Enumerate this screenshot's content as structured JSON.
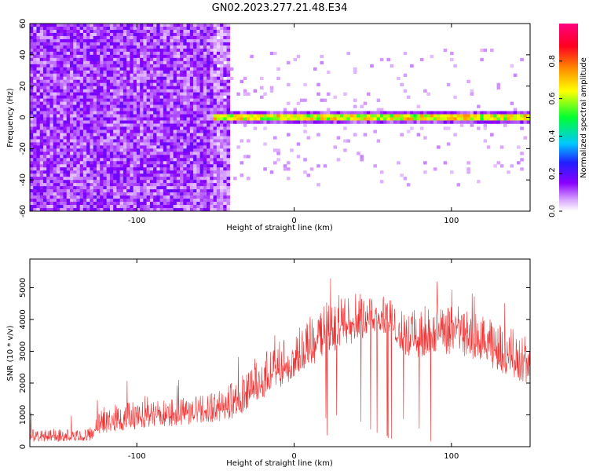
{
  "title": "GN02.2023.277.21.48.E34",
  "chart_data": [
    {
      "type": "heatmap",
      "xlabel": "Height of straight line (km)",
      "ylabel": "Frequency (Hz)",
      "xlim": [
        -168,
        150
      ],
      "ylim": [
        -60,
        60
      ],
      "xticks": [
        -100,
        0,
        100
      ],
      "yticks": [
        -60,
        -40,
        -20,
        0,
        20,
        40,
        60
      ],
      "colorbar": {
        "label": "Normalized spectral amplitude",
        "range": [
          0,
          1
        ],
        "ticks": [
          "0.0",
          "0.2",
          "0.4",
          "0.6",
          "0.8"
        ],
        "colors": [
          "#ffffff",
          "#d9a6ff",
          "#8a00ff",
          "#2020ff",
          "#00c8ff",
          "#00ff30",
          "#ffff00",
          "#ff8c00",
          "#ff0020",
          "#ff0080"
        ]
      },
      "features": [
        {
          "name": "broadband noise",
          "x_range": [
            -168,
            -40
          ],
          "freq_range": [
            -60,
            60
          ],
          "amplitude": 0.15
        },
        {
          "name": "narrow line",
          "x_range": [
            -52,
            150
          ],
          "freq_center": 0,
          "freq_halfwidth": 3,
          "amplitude": 0.85
        }
      ]
    },
    {
      "type": "line",
      "xlabel": "Height of straight line (km)",
      "ylabel": "SNR (10 * v/v)",
      "xlim": [
        -168,
        150
      ],
      "ylim": [
        0,
        5900
      ],
      "xticks": [
        -100,
        0,
        100
      ],
      "yticks": [
        0,
        1000,
        2000,
        3000,
        4000,
        5000
      ],
      "color": "#f03030",
      "envelope": {
        "x": [
          -168,
          -130,
          -124,
          -100,
          -75,
          -50,
          -40,
          -25,
          -15,
          0,
          10,
          20,
          35,
          45,
          55,
          60,
          70,
          80,
          90,
          100,
          110,
          120,
          130,
          140,
          150
        ],
        "low": [
          150,
          180,
          380,
          550,
          650,
          780,
          850,
          1300,
          1650,
          2150,
          2500,
          2900,
          3200,
          3400,
          3600,
          3400,
          2850,
          2800,
          2900,
          2900,
          2800,
          2600,
          2350,
          2100,
          1900
        ],
        "high": [
          550,
          580,
          1300,
          1450,
          1500,
          1700,
          2000,
          2700,
          3100,
          3700,
          4100,
          4600,
          4750,
          4850,
          5100,
          4700,
          4300,
          4400,
          4600,
          4500,
          4300,
          4100,
          3900,
          3700,
          3400
        ]
      }
    }
  ]
}
